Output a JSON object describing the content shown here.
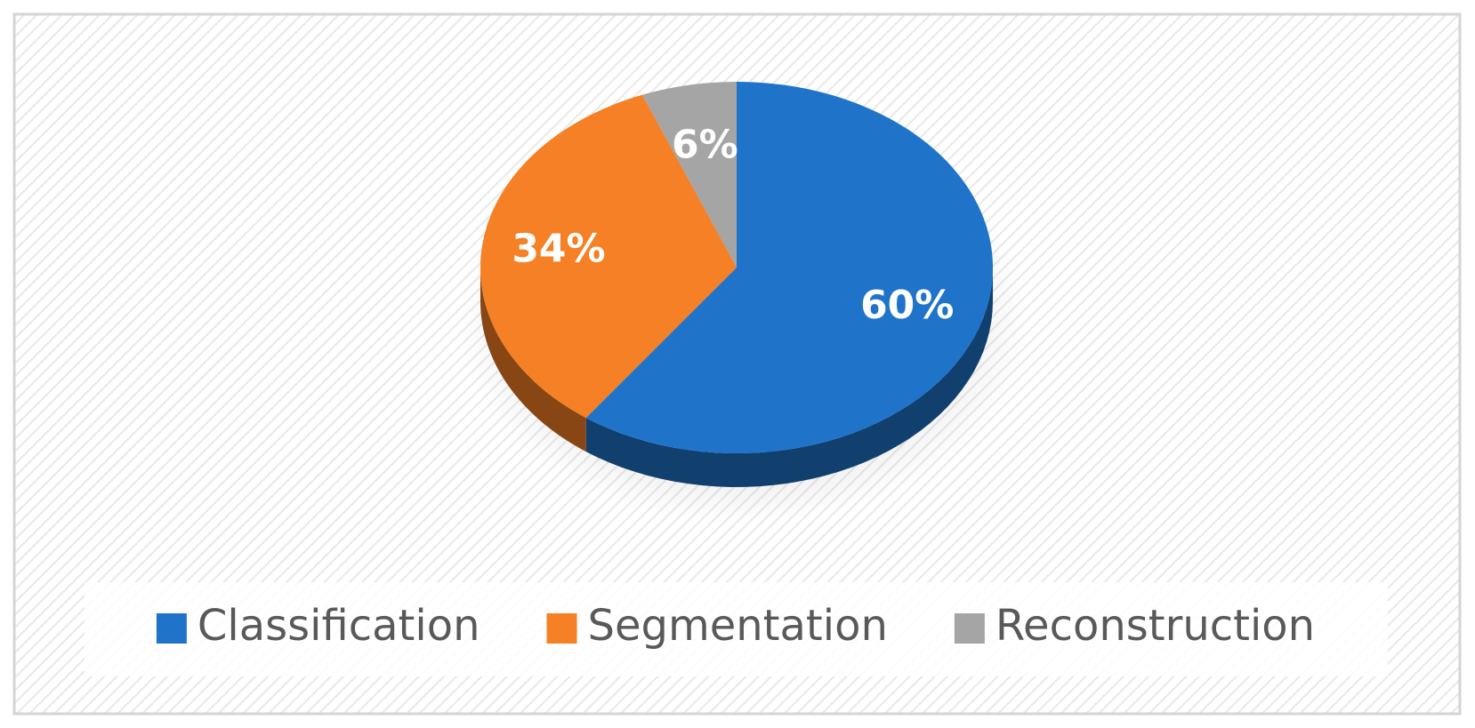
{
  "chart_data": {
    "type": "pie",
    "categories": [
      "Classification",
      "Segmentation",
      "Reconstruction"
    ],
    "values": [
      60,
      34,
      6
    ],
    "value_labels": [
      "60%",
      "34%",
      "6%"
    ],
    "colors": [
      "#1f74c9",
      "#f58025",
      "#a5a5a5"
    ],
    "legend": "bottom"
  }
}
